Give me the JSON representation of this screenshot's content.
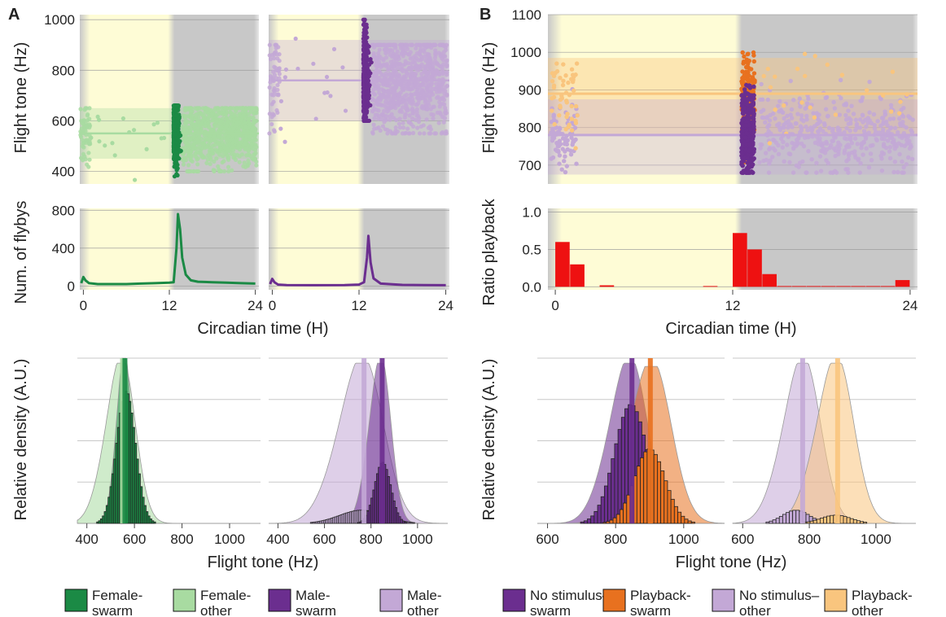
{
  "panels": {
    "A": "A",
    "B": "B"
  },
  "colors": {
    "female_swarm": "#1b8a45",
    "female_other": "#a8dba1",
    "male_swarm": "#6b2e8f",
    "male_other": "#c3a8d6",
    "playback_swarm": "#e8711f",
    "playback_other": "#f9c57e",
    "light_phase": "#fefcd6",
    "dark_phase": "#c8c8c8",
    "ratio_bar": "#ee1111"
  },
  "chart_data": [
    {
      "id": "A-tone",
      "type": "scatter",
      "ylabel": "Flight tone (Hz)",
      "ylim": [
        350,
        1020
      ],
      "yticks": [
        400,
        600,
        800,
        1000
      ],
      "xlim": [
        -0.5,
        24.5
      ],
      "light_period": [
        0,
        12.5
      ],
      "facets": [
        {
          "group": "Female",
          "mean": 550,
          "band": [
            450,
            650
          ],
          "series": [
            {
              "name": "Female-swarm",
              "x_range": [
                12.6,
                13.6
              ],
              "y_range": [
                380,
                660
              ]
            },
            {
              "name": "Female-other",
              "x_range": [
                13.8,
                24.2
              ],
              "y_range": [
                400,
                650
              ],
              "extra_x_range": [
                -0.4,
                1.0
              ]
            }
          ]
        },
        {
          "group": "Male",
          "mean": 760,
          "band": [
            600,
            920
          ],
          "series": [
            {
              "name": "Male-swarm",
              "x_range": [
                12.6,
                13.6
              ],
              "y_range": [
                600,
                1000
              ]
            },
            {
              "name": "Male-other",
              "x_range": [
                13.8,
                24.2
              ],
              "y_range": [
                550,
                900
              ],
              "extra_x_range": [
                -0.4,
                1.0
              ]
            }
          ]
        }
      ]
    },
    {
      "id": "A-flybys",
      "type": "line",
      "ylabel": "Num. of flybys",
      "xlabel": "Circadian time (H)",
      "ylim": [
        -40,
        820
      ],
      "yticks": [
        0,
        400,
        800
      ],
      "xticks": [
        0,
        12,
        24
      ],
      "xlim": [
        -0.5,
        24.5
      ],
      "light_period": [
        0,
        12.5
      ],
      "facets": [
        {
          "group": "Female",
          "points": [
            [
              -0.3,
              30
            ],
            [
              0,
              95
            ],
            [
              0.3,
              60
            ],
            [
              0.8,
              30
            ],
            [
              2,
              20
            ],
            [
              4,
              20
            ],
            [
              6,
              20
            ],
            [
              8,
              25
            ],
            [
              10,
              30
            ],
            [
              12,
              35
            ],
            [
              12.6,
              40
            ],
            [
              13.0,
              400
            ],
            [
              13.2,
              760
            ],
            [
              13.5,
              600
            ],
            [
              13.8,
              300
            ],
            [
              14.3,
              120
            ],
            [
              15,
              60
            ],
            [
              16,
              45
            ],
            [
              18,
              40
            ],
            [
              20,
              35
            ],
            [
              22,
              30
            ],
            [
              24,
              25
            ]
          ]
        },
        {
          "group": "Male",
          "points": [
            [
              -0.3,
              20
            ],
            [
              0,
              75
            ],
            [
              0.3,
              40
            ],
            [
              0.8,
              15
            ],
            [
              2,
              10
            ],
            [
              6,
              8
            ],
            [
              10,
              10
            ],
            [
              12,
              15
            ],
            [
              12.7,
              40
            ],
            [
              13.1,
              300
            ],
            [
              13.3,
              530
            ],
            [
              13.6,
              250
            ],
            [
              14.0,
              80
            ],
            [
              15,
              25
            ],
            [
              18,
              12
            ],
            [
              21,
              10
            ],
            [
              24,
              8
            ]
          ]
        }
      ]
    },
    {
      "id": "B-tone",
      "type": "scatter",
      "ylabel": "Flight tone (Hz)",
      "ylim": [
        650,
        1100
      ],
      "yticks": [
        700,
        800,
        900,
        1000,
        1100
      ],
      "xlim": [
        -0.5,
        24.5
      ],
      "light_period": [
        0,
        12.5
      ],
      "lines": [
        {
          "name": "Playback",
          "mean": 890,
          "band": [
            780,
            985
          ]
        },
        {
          "name": "No stimulus",
          "mean": 780,
          "band": [
            675,
            875
          ]
        }
      ],
      "series": [
        {
          "name": "No stimulus–swarm",
          "x_range": [
            12.6,
            13.7
          ],
          "y_range": [
            680,
            1000
          ]
        },
        {
          "name": "Playback-swarm",
          "x_range": [
            12.6,
            13.7
          ],
          "y_range": [
            680,
            1065
          ]
        },
        {
          "name": "No stimulus–other",
          "x_range": [
            13.8,
            24.2
          ],
          "y_range": [
            680,
            960
          ]
        },
        {
          "name": "Playback-other",
          "x_range": [
            -0.3,
            1.5
          ],
          "y_range": [
            700,
            970
          ]
        }
      ]
    },
    {
      "id": "B-ratio",
      "type": "bar",
      "ylabel": "Ratio playback",
      "xlabel": "Circadian time (H)",
      "ylim": [
        -0.04,
        1.05
      ],
      "yticks": [
        0.0,
        0.5,
        1.0
      ],
      "ytick_labels": [
        "0.0",
        "0.5",
        "1.0"
      ],
      "xticks": [
        0,
        12,
        24
      ],
      "xlim": [
        -0.5,
        24.5
      ],
      "light_period": [
        0,
        12.5
      ],
      "bins": [
        {
          "x": 0.5,
          "value": 0.6
        },
        {
          "x": 1.5,
          "value": 0.3
        },
        {
          "x": 3.5,
          "value": 0.02
        },
        {
          "x": 10.5,
          "value": 0.01
        },
        {
          "x": 12.5,
          "value": 0.72
        },
        {
          "x": 13.5,
          "value": 0.5
        },
        {
          "x": 14.5,
          "value": 0.17
        },
        {
          "x": 15.5,
          "value": 0.01
        },
        {
          "x": 16.5,
          "value": 0.01
        },
        {
          "x": 17.5,
          "value": 0.01
        },
        {
          "x": 18.5,
          "value": 0.01
        },
        {
          "x": 19.5,
          "value": 0.01
        },
        {
          "x": 20.5,
          "value": 0.01
        },
        {
          "x": 21.5,
          "value": 0.01
        },
        {
          "x": 22.5,
          "value": 0.01
        },
        {
          "x": 23.5,
          "value": 0.09
        }
      ]
    },
    {
      "id": "A-density",
      "type": "area",
      "ylabel": "Relative density (A.U.)",
      "xlabel": "Flight tone (Hz)",
      "xlim": [
        360,
        1130
      ],
      "facets": [
        {
          "group": "Female",
          "xticks": [
            400,
            600,
            800,
            1000
          ],
          "densities": [
            {
              "name": "Female-other",
              "mean": 550,
              "sd": 55,
              "peak": 0.97
            },
            {
              "name": "Female-swarm",
              "mean": 560,
              "sd": 28,
              "peak": 1.0
            }
          ],
          "histograms": [
            {
              "name": "Female-swarm",
              "mean": 565,
              "sd": 40,
              "peak": 0.8,
              "bin": 8
            }
          ],
          "vlines": [
            {
              "name": "Female-other",
              "x": 550
            },
            {
              "name": "Female-swarm",
              "x": 560
            }
          ]
        },
        {
          "group": "Male",
          "xticks": [
            400,
            600,
            800,
            1000
          ],
          "densities": [
            {
              "name": "Male-other",
              "mean": 770,
              "sd": 85,
              "peak": 0.97
            },
            {
              "name": "Male-swarm",
              "mean": 845,
              "sd": 42,
              "peak": 0.97
            }
          ],
          "histograms": [
            {
              "name": "Male-other",
              "mean": 760,
              "sd": 95,
              "peak": 0.08,
              "bin": 8
            },
            {
              "name": "Male-swarm",
              "mean": 850,
              "sd": 35,
              "peak": 0.37,
              "bin": 8
            }
          ],
          "vlines": [
            {
              "name": "Male-other",
              "x": 770
            },
            {
              "name": "Male-swarm",
              "x": 848
            }
          ]
        }
      ]
    },
    {
      "id": "B-density",
      "type": "area",
      "ylabel": "Relative density (A.U.)",
      "xlabel": "Flight tone (Hz)",
      "xlim": [
        570,
        1120
      ],
      "facets": [
        {
          "group": "Swarm",
          "xticks": [
            600,
            800,
            1000
          ],
          "densities": [
            {
              "name": "No stimulus–swarm",
              "mean": 845,
              "sd": 50,
              "peak": 0.97
            },
            {
              "name": "Playback-swarm",
              "mean": 910,
              "sd": 55,
              "peak": 0.95
            }
          ],
          "histograms": [
            {
              "name": "No stimulus–swarm",
              "mean": 845,
              "sd": 48,
              "peak": 0.72,
              "bin": 10
            },
            {
              "name": "Playback-swarm",
              "mean": 900,
              "sd": 45,
              "peak": 0.45,
              "bin": 10
            }
          ],
          "vlines": [
            {
              "name": "No stimulus–swarm",
              "x": 848
            },
            {
              "name": "Playback-swarm",
              "x": 902
            }
          ]
        },
        {
          "group": "Other",
          "xticks": [
            600,
            800,
            1000
          ],
          "densities": [
            {
              "name": "No stimulus–other",
              "mean": 785,
              "sd": 50,
              "peak": 0.97
            },
            {
              "name": "Playback-other",
              "mean": 885,
              "sd": 50,
              "peak": 0.97
            }
          ],
          "histograms": [
            {
              "name": "No stimulus–other",
              "mean": 760,
              "sd": 40,
              "peak": 0.08,
              "bin": 10
            },
            {
              "name": "Playback-other",
              "mean": 880,
              "sd": 45,
              "peak": 0.05,
              "bin": 10
            }
          ],
          "vlines": [
            {
              "name": "No stimulus–other",
              "x": 780
            },
            {
              "name": "Playback-other",
              "x": 885
            }
          ]
        }
      ]
    }
  ],
  "legend": [
    {
      "line1": "Female-",
      "line2": "swarm",
      "color_key": "female_swarm"
    },
    {
      "line1": "Female-",
      "line2": "other",
      "color_key": "female_other"
    },
    {
      "line1": "Male-",
      "line2": "swarm",
      "color_key": "male_swarm"
    },
    {
      "line1": "Male-",
      "line2": "other",
      "color_key": "male_other"
    },
    {
      "line1": "No stimulus–",
      "line2": "swarm",
      "color_key": "male_swarm"
    },
    {
      "line1": "Playback-",
      "line2": "swarm",
      "color_key": "playback_swarm"
    },
    {
      "line1": "No stimulus–",
      "line2": "other",
      "color_key": "male_other"
    },
    {
      "line1": "Playback-",
      "line2": "other",
      "color_key": "playback_other"
    }
  ]
}
